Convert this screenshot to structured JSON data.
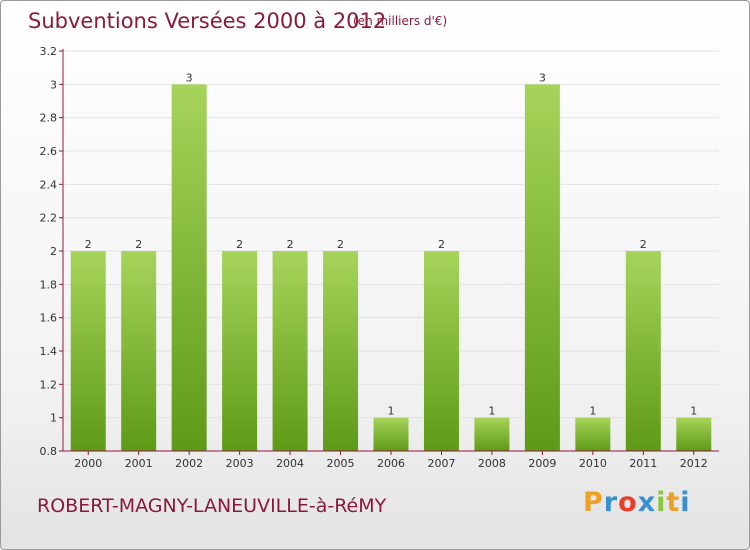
{
  "header": {
    "title": "Subventions Versées 2000 à 2012",
    "unit_note": "(en milliers d'€)"
  },
  "footer": {
    "commune": "ROBERT-MAGNY-LANEUVILLE-à-RéMY",
    "logo": {
      "letters": [
        "P",
        "r",
        "o",
        "x",
        "i",
        "t",
        "i"
      ],
      "colors": [
        "#f0a020",
        "#3a8fd0",
        "#e8402a",
        "#3a8fd0",
        "#8cc63f",
        "#f0a020",
        "#3a8fd0"
      ]
    }
  },
  "colors": {
    "bar_light": "#a6d45a",
    "bar_dark": "#5e9a17",
    "axis": "#8a1a3c",
    "title": "#8a1a3c"
  },
  "chart_data": {
    "type": "bar",
    "title": "Subventions Versées 2000 à 2012",
    "subtitle": "(en milliers d'€)",
    "xlabel": "",
    "ylabel": "",
    "categories": [
      "2000",
      "2001",
      "2002",
      "2003",
      "2004",
      "2005",
      "2006",
      "2007",
      "2008",
      "2009",
      "2010",
      "2011",
      "2012"
    ],
    "values": [
      2,
      2,
      3,
      2,
      2,
      2,
      1,
      2,
      1,
      3,
      1,
      2,
      1
    ],
    "value_labels": [
      "2",
      "2",
      "3",
      "2",
      "2",
      "2",
      "1",
      "2",
      "1",
      "3",
      "1",
      "2",
      "1"
    ],
    "ylim": [
      0.8,
      3.2
    ],
    "yticks": [
      0.8,
      1,
      1.2,
      1.4,
      1.6,
      1.8,
      2,
      2.2,
      2.4,
      2.6,
      2.8,
      3,
      3.2
    ],
    "ytick_labels": [
      "0.8",
      "1",
      "1.2",
      "1.4",
      "1.6",
      "1.8",
      "2",
      "2.2",
      "2.4",
      "2.6",
      "2.8",
      "3",
      "3.2"
    ],
    "grid": "horizontal",
    "legend": "none"
  }
}
